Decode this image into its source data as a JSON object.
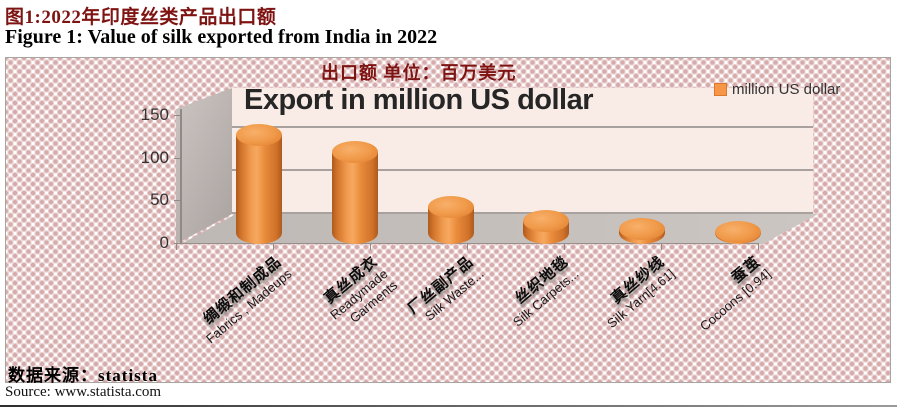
{
  "page": {
    "title_cn": "图1:2022年印度丝类产品出口额",
    "title_en": "Figure 1: Value of silk exported from India in 2022",
    "source_en": "Source: www.statista.com"
  },
  "chart": {
    "subtitle_cn": "出口额  单位：百万美元",
    "source_cn": "数据来源：statista",
    "legend": {
      "label": "million US dollar",
      "swatch_color": "#F79646"
    }
  },
  "chart_data": {
    "type": "bar",
    "style": "3d-cylinder",
    "title": "Export in million US dollar",
    "series_name": "million US dollar",
    "categories": [
      {
        "cn": "绸缎和制成品",
        "en": "Fabrics , Madeups"
      },
      {
        "cn": "真丝成衣",
        "en": "Readymade Garments"
      },
      {
        "cn": "厂丝副产品",
        "en": "Silk Waste..."
      },
      {
        "cn": "丝织地毯",
        "en": "Silk Carpets..."
      },
      {
        "cn": "真丝纱线",
        "en": "Silk Yarn[4.61]"
      },
      {
        "cn": "蚕茧",
        "en": "Cocoons [0.94]"
      }
    ],
    "values": [
      115,
      95,
      31,
      14,
      4.61,
      0.94
    ],
    "values_from_labels": {
      "Silk Yarn": 4.61,
      "Cocoons": 0.94
    },
    "xlabel": "",
    "ylabel": "",
    "ylim": [
      0,
      150
    ],
    "yticks": [
      150,
      100,
      50,
      0
    ],
    "grid": true,
    "bar_color": "#E98B3A",
    "legend_position": "top-right"
  }
}
